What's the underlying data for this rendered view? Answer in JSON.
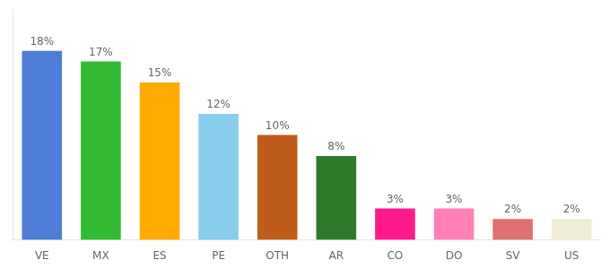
{
  "chart_data": {
    "type": "bar",
    "categories": [
      "VE",
      "MX",
      "ES",
      "PE",
      "OTH",
      "AR",
      "CO",
      "DO",
      "SV",
      "US"
    ],
    "values": [
      18,
      17,
      15,
      12,
      10,
      8,
      3,
      3,
      2,
      2
    ],
    "value_labels": [
      "18%",
      "17%",
      "15%",
      "12%",
      "10%",
      "8%",
      "3%",
      "3%",
      "2%",
      "2%"
    ],
    "colors": [
      "#4d7dd6",
      "#33bb33",
      "#ffaa00",
      "#88ccee",
      "#c05c1a",
      "#2d7a2d",
      "#ff1a8c",
      "#ff80b3",
      "#e07070",
      "#f0edd8"
    ],
    "ylim": [
      0,
      22
    ],
    "grid": false,
    "legend": false,
    "data_labels": true,
    "tick_labels": "x"
  }
}
